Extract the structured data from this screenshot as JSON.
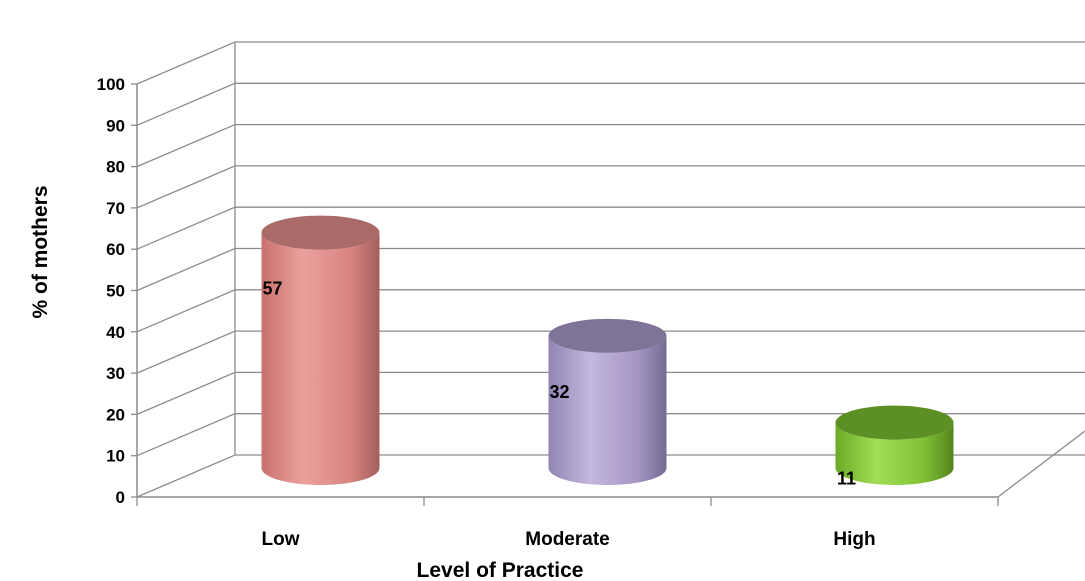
{
  "chart_data": {
    "type": "bar",
    "style": "3d-cylinder",
    "categories": [
      "Low",
      "Moderate",
      "High"
    ],
    "values": [
      57,
      32,
      11
    ],
    "data_labels": [
      "57",
      "32",
      "11"
    ],
    "xlabel": "Level of Practice",
    "ylabel": "% of mothers",
    "ylim": [
      0,
      100
    ],
    "yticks": [
      "0",
      "10",
      "20",
      "30",
      "40",
      "50",
      "60",
      "70",
      "80",
      "90",
      "100"
    ],
    "grid": true,
    "legend": "none",
    "colors": [
      "#e2908c",
      "#ab9dc7",
      "#86c83c"
    ],
    "dark_colors": [
      "#a96a68",
      "#7f7497",
      "#5c8f24"
    ],
    "grid_color": "#8c8c8c"
  }
}
